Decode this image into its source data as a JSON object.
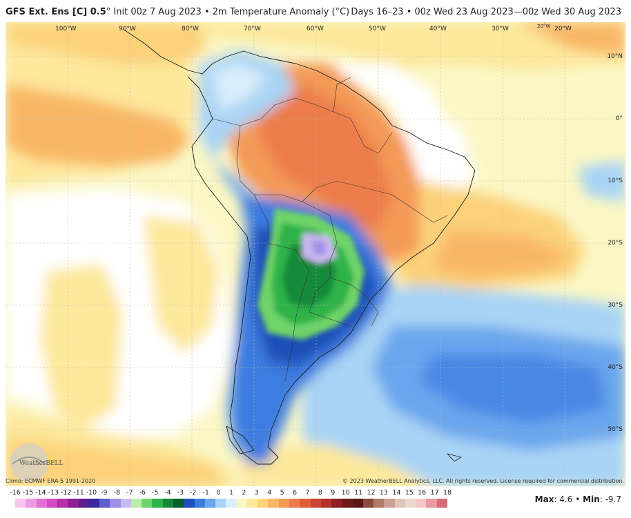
{
  "header": {
    "model": "GFS Ext.  Ens [C] 0.5",
    "degree_mark": "°",
    "init": "Init 00z 7 Aug 2023",
    "sep": "•",
    "field": "2m Temperature Anomaly (°C)",
    "valid": "Days 16–23 • 00z Wed 23 Aug 2023—00z Wed 30 Aug 2023"
  },
  "map": {
    "lon_labels": [
      "100°W",
      "90°W",
      "80°W",
      "70°W",
      "60°W",
      "50°W",
      "40°W",
      "30°W",
      "20°W"
    ],
    "lon_extra": "20°W",
    "lat_labels": [
      "10°N",
      "0°",
      "10°S",
      "20°S",
      "30°S",
      "40°S",
      "50°S"
    ]
  },
  "logo": {
    "text": "WeatherBELL"
  },
  "credits": {
    "climo": "Climo: ECMWF ERA-5 1991-2020",
    "copyright": "© 2023 WeatherBELL Analytics, LLC. All rights reserved. License required for commercial distribution."
  },
  "colorbar": {
    "ticks": [
      "-16",
      "-15",
      "-14",
      "-13",
      "-12",
      "-11",
      "-10",
      "-9",
      "-8",
      "-7",
      "-6",
      "-5",
      "-4",
      "-3",
      "-2",
      "-1",
      "0",
      "1",
      "2",
      "3",
      "4",
      "5",
      "6",
      "7",
      "8",
      "9",
      "10",
      "11",
      "12",
      "13",
      "14",
      "15",
      "16",
      "17",
      "18"
    ],
    "colors": [
      "#f7c6f0",
      "#ee9ae3",
      "#e36fd5",
      "#d34bc4",
      "#b52ea8",
      "#8d1f93",
      "#5b1f8e",
      "#3b2a9d",
      "#5b5fd0",
      "#9e8ee6",
      "#c9b8f0",
      "#b7efa8",
      "#6fd469",
      "#2fb34a",
      "#138a3a",
      "#0b5f2e",
      "#1f4fb8",
      "#3c7be0",
      "#6aa6ee",
      "#a9d4f5",
      "#d9eefb",
      "#fbf7c5",
      "#fde89b",
      "#fcd27a",
      "#f9b766",
      "#f49a57",
      "#ec7c4a",
      "#e05e3c",
      "#cd4432",
      "#b6302b",
      "#8f1f22",
      "#6e1a1a",
      "#5a1717",
      "#8a4a3e",
      "#b07a6a",
      "#caa093",
      "#e0c4b8",
      "#ecd7cf",
      "#f3c7c9",
      "#e99aa0",
      "#d86b75"
    ]
  },
  "stats": {
    "max_label": "Max",
    "max_value": ": 4.6",
    "sep": " • ",
    "min_label": "Min",
    "min_value": ": -9.7"
  }
}
